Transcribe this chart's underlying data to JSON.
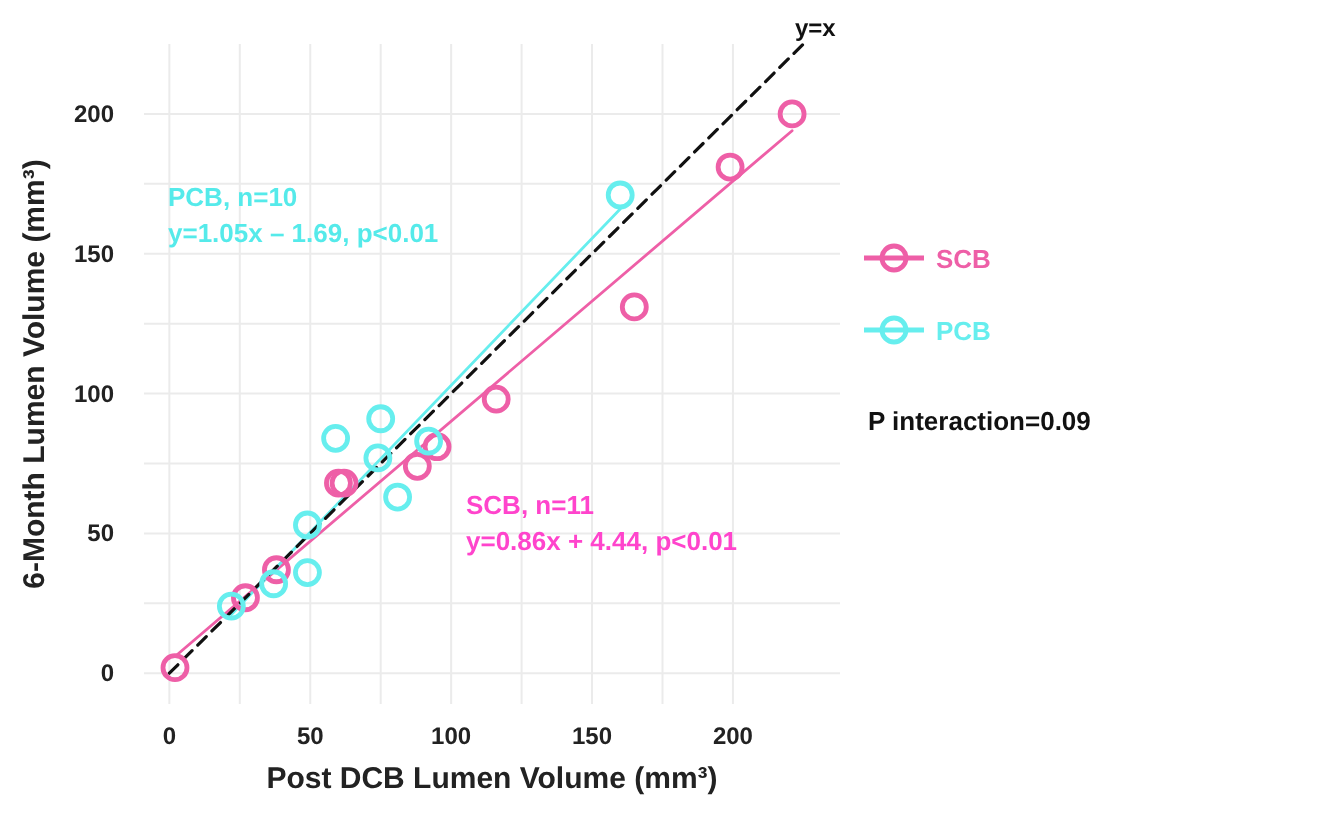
{
  "chart_data": {
    "type": "scatter",
    "xlabel": "Post DCB Lumen Volume (mm³)",
    "ylabel": "6-Month Lumen Volume (mm³)",
    "xlim": [
      -9,
      238
    ],
    "ylim": [
      -11,
      225
    ],
    "xticks": [
      0,
      50,
      100,
      150,
      200
    ],
    "yticks": [
      0,
      50,
      100,
      150,
      200
    ],
    "grid": true,
    "legend": "right",
    "marker": "circle",
    "series": [
      {
        "name": "SCB",
        "color": "#ee5fa7",
        "x": [
          2,
          27,
          38,
          60,
          62,
          88,
          95,
          116,
          165,
          199,
          221
        ],
        "values": [
          2,
          27,
          37,
          68,
          68,
          74,
          81,
          98,
          131,
          181,
          200
        ]
      },
      {
        "name": "PCB",
        "color": "#66eeee",
        "x": [
          22,
          37,
          49,
          49,
          59,
          74,
          75,
          81,
          92,
          160
        ],
        "values": [
          24,
          32,
          53,
          36,
          84,
          77,
          91,
          63,
          83,
          171
        ]
      },
      {
        "type": "line",
        "color": "#ee5fa7",
        "x": [
          2,
          221
        ],
        "values": [
          6,
          194
        ],
        "marker": "none"
      },
      {
        "type": "line",
        "color": "#66eeee",
        "x": [
          22,
          160
        ],
        "values": [
          21,
          166
        ],
        "marker": "none"
      },
      {
        "type": "line",
        "name": "y=x",
        "color": "#111111",
        "x": [
          0,
          225
        ],
        "values": [
          0,
          225
        ],
        "marker": "none",
        "line_style": "dashed"
      }
    ],
    "annotations": [
      "SCB, n=11\ny=0.86x + 4.44, p<0.01",
      "PCB, n=10\ny=1.05x – 1.69, p<0.01",
      "P interaction=0.09"
    ]
  }
}
